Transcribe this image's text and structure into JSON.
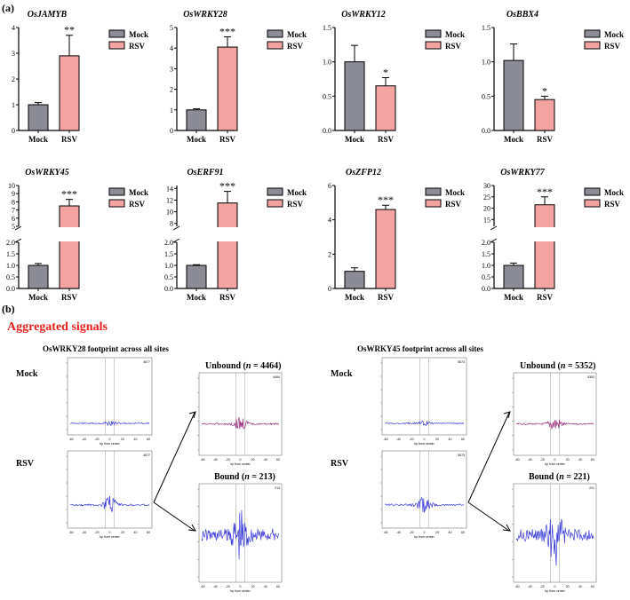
{
  "panel_a_label": "(a)",
  "panel_b_label": "(b)",
  "legend": {
    "mock": "Mock",
    "rsv": "RSV"
  },
  "colors": {
    "mock": "#8c8c96",
    "rsv": "#f4a3a3",
    "signal_blue": "#3b3bdc",
    "signal_purple": "#9a2f7a",
    "title_red": "#e8201a"
  },
  "chart_data": [
    {
      "type": "bar",
      "title": "OsJAMYB",
      "categories": [
        "Mock",
        "RSV"
      ],
      "values": [
        1.0,
        2.9
      ],
      "errors": [
        0.08,
        0.8
      ],
      "ylim": [
        0,
        4
      ],
      "yticks": [
        "0",
        "1",
        "2",
        "3",
        "4"
      ],
      "significance": "**",
      "broken_axis": false
    },
    {
      "type": "bar",
      "title": "OsWRKY28",
      "categories": [
        "Mock",
        "RSV"
      ],
      "values": [
        1.0,
        4.05
      ],
      "errors": [
        0.05,
        0.5
      ],
      "ylim": [
        0,
        5
      ],
      "yticks": [
        "0",
        "1",
        "2",
        "3",
        "4",
        "5"
      ],
      "significance": "***",
      "broken_axis": false
    },
    {
      "type": "bar",
      "title": "OsWRKY12",
      "categories": [
        "Mock",
        "RSV"
      ],
      "values": [
        1.0,
        0.65
      ],
      "errors": [
        0.24,
        0.12
      ],
      "ylim": [
        0,
        1.5
      ],
      "yticks": [
        "0.0",
        "0.5",
        "1.0",
        "1.5"
      ],
      "significance": "*",
      "broken_axis": false
    },
    {
      "type": "bar",
      "title": "OsBBX4",
      "categories": [
        "Mock",
        "RSV"
      ],
      "values": [
        1.02,
        0.45
      ],
      "errors": [
        0.24,
        0.05
      ],
      "ylim": [
        0,
        1.5
      ],
      "yticks": [
        "0.0",
        "0.5",
        "1.0",
        "1.5"
      ],
      "significance": "*",
      "broken_axis": false
    },
    {
      "type": "bar",
      "title": "OsWRKY45",
      "categories": [
        "Mock",
        "RSV"
      ],
      "values": [
        1.0,
        7.5
      ],
      "errors": [
        0.08,
        0.8
      ],
      "lower_range": [
        0,
        2
      ],
      "upper_range": [
        5,
        10
      ],
      "yticks_lower": [
        "0.0",
        "0.5",
        "1.0",
        "1.5",
        "2.0"
      ],
      "yticks_upper": [
        "5",
        "6",
        "7",
        "8",
        "9",
        "10"
      ],
      "significance": "***",
      "broken_axis": true
    },
    {
      "type": "bar",
      "title": "OsERF91",
      "categories": [
        "Mock",
        "RSV"
      ],
      "values": [
        1.0,
        11.5
      ],
      "errors": [
        0.03,
        2.0
      ],
      "lower_range": [
        0,
        2
      ],
      "upper_range": [
        7.5,
        14.5
      ],
      "yticks_lower": [
        "0.0",
        "0.5",
        "1.0",
        "1.5",
        "2.0"
      ],
      "yticks_upper": [
        "8",
        "10",
        "12",
        "14"
      ],
      "significance": "***",
      "broken_axis": true
    },
    {
      "type": "bar",
      "title": "OsZFP12",
      "categories": [
        "Mock",
        "RSV"
      ],
      "values": [
        1.0,
        4.6
      ],
      "errors": [
        0.2,
        0.25
      ],
      "ylim": [
        0,
        6
      ],
      "yticks": [
        "0",
        "2",
        "4",
        "6"
      ],
      "significance": "***",
      "broken_axis": false
    },
    {
      "type": "bar",
      "title": "OsWRKY77",
      "categories": [
        "Mock",
        "RSV"
      ],
      "values": [
        1.0,
        21.5
      ],
      "errors": [
        0.1,
        3.5
      ],
      "lower_range": [
        0,
        2
      ],
      "upper_range": [
        12,
        30
      ],
      "yticks_lower": [
        "0.0",
        "0.5",
        "1.0",
        "1.5",
        "2.0"
      ],
      "yticks_upper": [
        "15",
        "20",
        "25",
        "30"
      ],
      "significance": "***",
      "broken_axis": true
    }
  ],
  "panel_b": {
    "title": "Aggregated signals",
    "groups": [
      {
        "title": "OsWRKY28  footprint  across all sites",
        "mock_label": "Mock",
        "rsv_label": "RSV",
        "unbound_prefix": "Unbound (",
        "unbound_n": "n",
        "unbound_suffix": " = 4464)",
        "bound_prefix": "Bound (",
        "bound_n": "n",
        "bound_suffix": " = 213)",
        "small_mock": "4677",
        "small_rsv": "4677",
        "small_unbound": "4464",
        "small_bound": "213",
        "xticks": [
          "-60",
          "-40",
          "-20",
          "0",
          "20",
          "40",
          "60"
        ],
        "xlabel": "bp from center"
      },
      {
        "title": "OsWRKY45  footprint  across all sites",
        "mock_label": "Mock",
        "rsv_label": "RSV",
        "unbound_prefix": "Unbound (",
        "unbound_n": "n",
        "unbound_suffix": " = 5352)",
        "bound_prefix": "Bound (",
        "bound_n": "n",
        "bound_suffix": " = 221)",
        "small_mock": "5573",
        "small_rsv": "5573",
        "small_unbound": "5352",
        "small_bound": "221",
        "xticks": [
          "-60",
          "-40",
          "-20",
          "0",
          "20",
          "40",
          "60"
        ],
        "xlabel": "bp from center"
      }
    ]
  }
}
